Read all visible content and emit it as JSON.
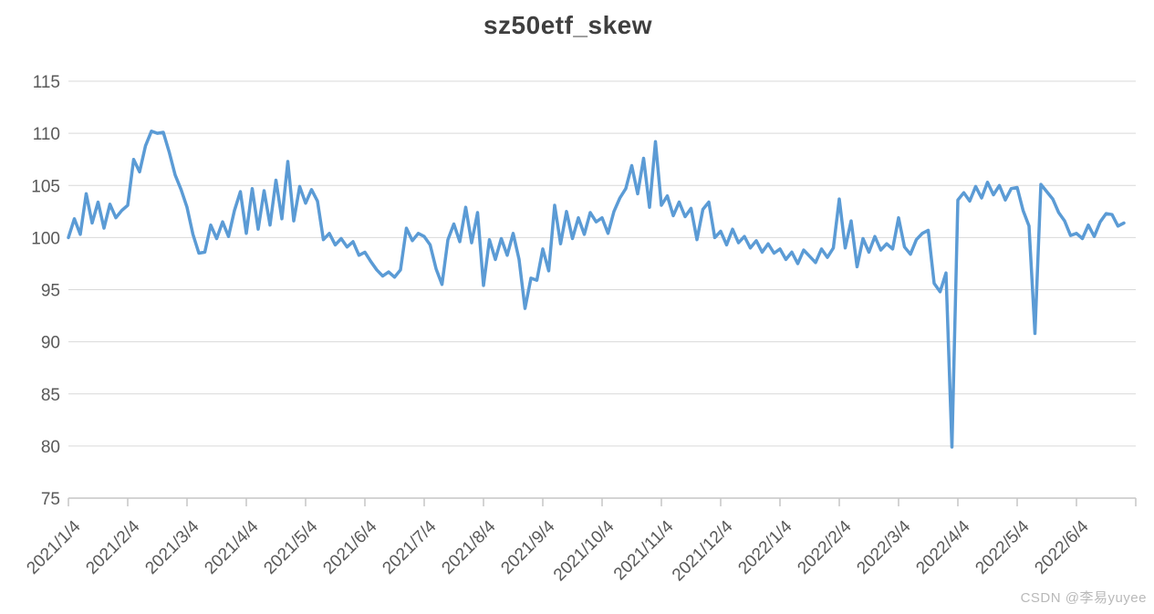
{
  "header": {
    "title": "sz50etf_skew",
    "title_color": "#3f3f3f"
  },
  "watermark": {
    "text": "CSDN @李易yuyee",
    "color": "#b9b9b9"
  },
  "chart_data": {
    "type": "line",
    "title": "sz50etf_skew",
    "xlabel": "",
    "ylabel": "",
    "ylim": [
      75,
      115
    ],
    "ytick_step": 5,
    "ytick_labels": [
      "115",
      "110",
      "105",
      "100",
      "95",
      "90",
      "85",
      "80",
      "75"
    ],
    "x_tick_labels": [
      "2021/1/4",
      "2021/2/4",
      "2021/3/4",
      "2021/4/4",
      "2021/5/4",
      "2021/6/4",
      "2021/7/4",
      "2021/8/4",
      "2021/9/4",
      "2021/10/4",
      "2021/11/4",
      "2021/12/4",
      "2022/1/4",
      "2022/2/4",
      "2022/3/4",
      "2022/4/4",
      "2022/5/4",
      "2022/6/4"
    ],
    "grid": true,
    "legend_position": "none",
    "points_per_interval": 10,
    "colors": {
      "line": "#5B9BD5",
      "gridline": "#D9D9D9",
      "axis": "#C6C6C6",
      "tick_label": "#595959"
    },
    "series": [
      {
        "name": "sz50etf_skew",
        "color": "#5B9BD5",
        "values": [
          100.0,
          101.8,
          100.3,
          104.2,
          101.4,
          103.4,
          100.9,
          103.2,
          101.9,
          102.6,
          103.1,
          107.5,
          106.3,
          108.8,
          110.2,
          110.0,
          110.1,
          108.2,
          106.0,
          104.6,
          102.9,
          100.3,
          98.5,
          98.6,
          101.2,
          99.9,
          101.5,
          100.1,
          102.6,
          104.4,
          100.4,
          104.7,
          100.8,
          104.5,
          101.2,
          105.5,
          101.8,
          107.3,
          101.6,
          104.9,
          103.3,
          104.6,
          103.5,
          99.8,
          100.4,
          99.3,
          99.9,
          99.1,
          99.6,
          98.3,
          98.6,
          97.7,
          96.9,
          96.3,
          96.7,
          96.2,
          96.9,
          100.9,
          99.7,
          100.4,
          100.1,
          99.3,
          97.0,
          95.5,
          99.8,
          101.3,
          99.6,
          102.9,
          99.5,
          102.4,
          95.4,
          99.8,
          97.9,
          99.9,
          98.3,
          100.4,
          97.9,
          93.2,
          96.1,
          95.9,
          98.9,
          96.8,
          103.1,
          99.4,
          102.5,
          99.9,
          101.9,
          100.3,
          102.4,
          101.5,
          101.9,
          100.4,
          102.5,
          103.8,
          104.7,
          106.9,
          104.2,
          107.6,
          102.9,
          109.2,
          103.1,
          104.0,
          102.1,
          103.4,
          102.0,
          102.8,
          99.8,
          102.7,
          103.4,
          100.0,
          100.6,
          99.3,
          100.8,
          99.5,
          100.1,
          99.0,
          99.7,
          98.6,
          99.4,
          98.5,
          98.9,
          97.9,
          98.6,
          97.5,
          98.8,
          98.2,
          97.6,
          98.9,
          98.1,
          99.0,
          103.7,
          99.0,
          101.6,
          97.2,
          99.9,
          98.6,
          100.1,
          98.8,
          99.4,
          98.9,
          101.9,
          99.1,
          98.4,
          99.8,
          100.4,
          100.7,
          95.6,
          94.8,
          96.6,
          79.9,
          103.6,
          104.3,
          103.5,
          104.9,
          103.8,
          105.3,
          104.1,
          105.0,
          103.6,
          104.7,
          104.8,
          102.6,
          101.1,
          90.8,
          105.1,
          104.4,
          103.7,
          102.4,
          101.6,
          100.2,
          100.4,
          99.9,
          101.2,
          100.1,
          101.5,
          102.3,
          102.2,
          101.1,
          101.4
        ]
      }
    ]
  }
}
